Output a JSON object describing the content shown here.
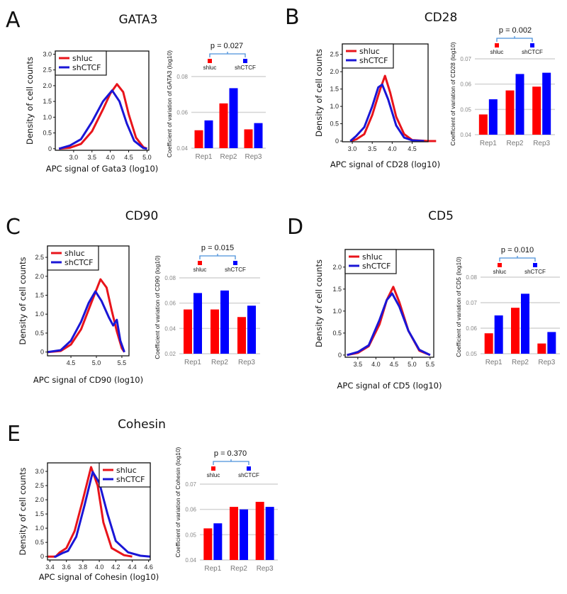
{
  "chart_data": [
    {
      "letter": "A",
      "title": "GATA3",
      "density": {
        "type": "line",
        "xlabel": "APC signal of Gata3 (log10)",
        "ylabel": "Density of cell counts",
        "xlim": [
          2.5,
          5.05
        ],
        "ylim": [
          -0.05,
          3.1
        ],
        "xticks": [
          "3.0",
          "3.5",
          "4.0",
          "4.5",
          "5.0"
        ],
        "yticks": [
          "0",
          "0.5",
          "1.0",
          "1.5",
          "2.0",
          "2.5",
          "3.0"
        ],
        "legend": "top-left",
        "series": [
          {
            "name": "shluc",
            "color": "#e8141b",
            "points": [
              [
                2.6,
                0
              ],
              [
                2.9,
                0.03
              ],
              [
                3.2,
                0.15
              ],
              [
                3.5,
                0.55
              ],
              [
                3.8,
                1.25
              ],
              [
                4.0,
                1.75
              ],
              [
                4.18,
                2.05
              ],
              [
                4.35,
                1.8
              ],
              [
                4.5,
                1.1
              ],
              [
                4.7,
                0.35
              ],
              [
                4.9,
                0.05
              ],
              [
                5.0,
                0
              ]
            ]
          },
          {
            "name": "shCTCF",
            "color": "#1a16d6",
            "points": [
              [
                2.6,
                0
              ],
              [
                2.9,
                0.1
              ],
              [
                3.2,
                0.3
              ],
              [
                3.5,
                0.85
              ],
              [
                3.8,
                1.5
              ],
              [
                4.05,
                1.85
              ],
              [
                4.25,
                1.5
              ],
              [
                4.45,
                0.8
              ],
              [
                4.65,
                0.25
              ],
              [
                4.9,
                0.02
              ],
              [
                5.0,
                0
              ]
            ]
          }
        ]
      },
      "bars": {
        "type": "bar",
        "ylabel": "Coefficient of variation of GATA3 (log10)",
        "ylim": [
          0.04,
          0.08
        ],
        "yticks": [
          "0.04",
          "0.06",
          "0.08"
        ],
        "categories": [
          "Rep1",
          "Rep2",
          "Rep3"
        ],
        "series": [
          {
            "name": "shluc",
            "color": "#ff0000",
            "values": [
              0.05,
              0.065,
              0.0505
            ]
          },
          {
            "name": "shCTCF",
            "color": "#0000ff",
            "values": [
              0.0555,
              0.0735,
              0.054
            ]
          }
        ],
        "p_value": "p = 0.027"
      }
    },
    {
      "letter": "B",
      "title": "CD28",
      "density": {
        "type": "line",
        "xlabel": "APC signal of CD28 (log10)",
        "ylabel": "Density of cell counts",
        "xlim": [
          2.75,
          4.9
        ],
        "ylim": [
          -0.02,
          2.8
        ],
        "xticks": [
          "3.0",
          "3.5",
          "4.0",
          "4.5"
        ],
        "yticks": [
          "0",
          "0.5",
          "1.0",
          "1.5",
          "2.0",
          "2.5"
        ],
        "legend": "top-left",
        "series": [
          {
            "name": "shluc",
            "color": "#e8141b",
            "points": [
              [
                2.95,
                0
              ],
              [
                3.1,
                0.05
              ],
              [
                3.3,
                0.2
              ],
              [
                3.5,
                0.75
              ],
              [
                3.7,
                1.5
              ],
              [
                3.82,
                1.88
              ],
              [
                3.95,
                1.4
              ],
              [
                4.1,
                0.7
              ],
              [
                4.3,
                0.2
              ],
              [
                4.5,
                0.03
              ],
              [
                4.9,
                0
              ],
              [
                5.1,
                0
              ]
            ]
          },
          {
            "name": "shCTCF",
            "color": "#1a16d6",
            "points": [
              [
                2.95,
                0
              ],
              [
                3.1,
                0.15
              ],
              [
                3.3,
                0.4
              ],
              [
                3.5,
                1.0
              ],
              [
                3.65,
                1.55
              ],
              [
                3.75,
                1.63
              ],
              [
                3.9,
                1.2
              ],
              [
                4.1,
                0.45
              ],
              [
                4.3,
                0.1
              ],
              [
                4.5,
                0.02
              ],
              [
                4.8,
                0
              ]
            ]
          }
        ]
      },
      "bars": {
        "type": "bar",
        "ylabel": "Coefficient of variation of CD28 (log10)",
        "ylim": [
          0.04,
          0.07
        ],
        "yticks": [
          "0.04",
          "0.05",
          "0.06",
          "0.07"
        ],
        "categories": [
          "Rep1",
          "Rep2",
          "Rep3"
        ],
        "series": [
          {
            "name": "shluc",
            "color": "#ff0000",
            "values": [
              0.048,
              0.0575,
              0.059
            ]
          },
          {
            "name": "shCTCF",
            "color": "#0000ff",
            "values": [
              0.054,
              0.064,
              0.0645
            ]
          }
        ],
        "p_value": "p = 0.002"
      }
    },
    {
      "letter": "C",
      "title": "CD90",
      "density": {
        "type": "line",
        "xlabel": "APC signal of CD90 (log10)",
        "ylabel": "Density of cell counts",
        "xlim": [
          4.04,
          5.64
        ],
        "ylim": [
          -0.1,
          2.8
        ],
        "xticks": [
          "4.5",
          "5.0",
          "5.5"
        ],
        "yticks": [
          "0",
          "0.5",
          "1.0",
          "1.5",
          "2.0",
          "2.5"
        ],
        "legend": "top-left",
        "series": [
          {
            "name": "shluc",
            "color": "#e8141b",
            "points": [
              [
                4.04,
                0
              ],
              [
                4.3,
                0.03
              ],
              [
                4.5,
                0.2
              ],
              [
                4.7,
                0.6
              ],
              [
                4.9,
                1.3
              ],
              [
                5.08,
                1.92
              ],
              [
                5.2,
                1.7
              ],
              [
                5.3,
                1.1
              ],
              [
                5.4,
                0.55
              ],
              [
                5.5,
                0.1
              ],
              [
                5.55,
                0
              ]
            ]
          },
          {
            "name": "shCTCF",
            "color": "#1a16d6",
            "points": [
              [
                4.04,
                0
              ],
              [
                4.3,
                0.05
              ],
              [
                4.5,
                0.3
              ],
              [
                4.7,
                0.8
              ],
              [
                4.85,
                1.3
              ],
              [
                4.98,
                1.6
              ],
              [
                5.1,
                1.35
              ],
              [
                5.25,
                0.9
              ],
              [
                5.33,
                0.7
              ],
              [
                5.4,
                0.85
              ],
              [
                5.47,
                0.3
              ],
              [
                5.55,
                0
              ]
            ]
          }
        ]
      },
      "bars": {
        "type": "bar",
        "ylabel": "Coefficient of variation of CD90 (log10)",
        "ylim": [
          0.02,
          0.08
        ],
        "yticks": [
          "0.02",
          "0.04",
          "0.06",
          "0.08"
        ],
        "categories": [
          "Rep1",
          "Rep2",
          "Rep3"
        ],
        "series": [
          {
            "name": "shluc",
            "color": "#ff0000",
            "values": [
              0.055,
              0.055,
              0.049
            ]
          },
          {
            "name": "shCTCF",
            "color": "#0000ff",
            "values": [
              0.068,
              0.07,
              0.058
            ]
          }
        ],
        "p_value": "p = 0.015"
      }
    },
    {
      "letter": "D",
      "title": "CD5",
      "density": {
        "type": "line",
        "xlabel": "APC signal of CD5 (log10)",
        "ylabel": "Density of cell counts",
        "xlim": [
          3.15,
          5.6
        ],
        "ylim": [
          -0.05,
          2.4
        ],
        "xticks": [
          "3.5",
          "4.0",
          "4.5",
          "5.0",
          "5.5"
        ],
        "yticks": [
          "0",
          "0.5",
          "1.0",
          "1.5",
          "2.0"
        ],
        "legend": "top-left",
        "series": [
          {
            "name": "shluc",
            "color": "#e8141b",
            "points": [
              [
                3.2,
                0
              ],
              [
                3.5,
                0.05
              ],
              [
                3.8,
                0.2
              ],
              [
                4.1,
                0.7
              ],
              [
                4.3,
                1.25
              ],
              [
                4.48,
                1.55
              ],
              [
                4.65,
                1.2
              ],
              [
                4.9,
                0.55
              ],
              [
                5.2,
                0.1
              ],
              [
                5.5,
                0
              ]
            ]
          },
          {
            "name": "shCTCF",
            "color": "#1a16d6",
            "points": [
              [
                3.2,
                0
              ],
              [
                3.5,
                0.07
              ],
              [
                3.8,
                0.22
              ],
              [
                4.1,
                0.8
              ],
              [
                4.3,
                1.25
              ],
              [
                4.45,
                1.4
              ],
              [
                4.65,
                1.1
              ],
              [
                4.9,
                0.55
              ],
              [
                5.2,
                0.12
              ],
              [
                5.5,
                0
              ]
            ]
          }
        ]
      },
      "bars": {
        "type": "bar",
        "ylabel": "Coefficient of variation of CD5 (log10)",
        "ylim": [
          0.05,
          0.08
        ],
        "yticks": [
          "0.05",
          "0.06",
          "0.07",
          "0.08"
        ],
        "categories": [
          "Rep1",
          "Rep2",
          "Rep3"
        ],
        "series": [
          {
            "name": "shluc",
            "color": "#ff0000",
            "values": [
              0.058,
              0.068,
              0.054
            ]
          },
          {
            "name": "shCTCF",
            "color": "#0000ff",
            "values": [
              0.065,
              0.0735,
              0.0585
            ]
          }
        ],
        "p_value": "p = 0.010"
      }
    },
    {
      "letter": "E",
      "title": "Cohesin",
      "density": {
        "type": "line",
        "xlabel": "APC signal of Cohesin (log10)",
        "ylabel": "Density of cell counts",
        "xlim": [
          3.37,
          4.62
        ],
        "ylim": [
          -0.12,
          3.3
        ],
        "xticks": [
          "3.4",
          "3.6",
          "3.8",
          "4.0",
          "4.2",
          "4.4",
          "4.6"
        ],
        "yticks": [
          "0",
          "0.5",
          "1.0",
          "1.5",
          "2.0",
          "2.5",
          "3.0"
        ],
        "legend": "top-right",
        "series": [
          {
            "name": "shluc",
            "color": "#e8141b",
            "points": [
              [
                3.37,
                0
              ],
              [
                3.47,
                0
              ],
              [
                3.52,
                0.15
              ],
              [
                3.6,
                0.3
              ],
              [
                3.7,
                0.9
              ],
              [
                3.8,
                2.0
              ],
              [
                3.9,
                3.15
              ],
              [
                3.98,
                2.5
              ],
              [
                4.05,
                1.2
              ],
              [
                4.15,
                0.3
              ],
              [
                4.3,
                0.05
              ],
              [
                4.4,
                0
              ]
            ]
          },
          {
            "name": "shCTCF",
            "color": "#1a16d6",
            "points": [
              [
                3.45,
                0
              ],
              [
                3.47,
                0
              ],
              [
                3.55,
                0.12
              ],
              [
                3.62,
                0.2
              ],
              [
                3.72,
                0.7
              ],
              [
                3.82,
                1.8
              ],
              [
                3.92,
                2.98
              ],
              [
                4.0,
                2.6
              ],
              [
                4.1,
                1.5
              ],
              [
                4.2,
                0.55
              ],
              [
                4.35,
                0.15
              ],
              [
                4.5,
                0.03
              ],
              [
                4.62,
                0
              ]
            ]
          }
        ]
      },
      "bars": {
        "type": "bar",
        "ylabel": "Coefficient of variation of Cohesin (log10)",
        "ylim": [
          0.04,
          0.07
        ],
        "yticks": [
          "0.04",
          "0.05",
          "0.06",
          "0.07"
        ],
        "categories": [
          "Rep1",
          "Rep2",
          "Rep3"
        ],
        "series": [
          {
            "name": "shluc",
            "color": "#ff0000",
            "values": [
              0.0525,
              0.061,
              0.063
            ]
          },
          {
            "name": "shCTCF",
            "color": "#0000ff",
            "values": [
              0.0545,
              0.06,
              0.061
            ]
          }
        ],
        "p_value": "p = 0.370"
      }
    }
  ]
}
